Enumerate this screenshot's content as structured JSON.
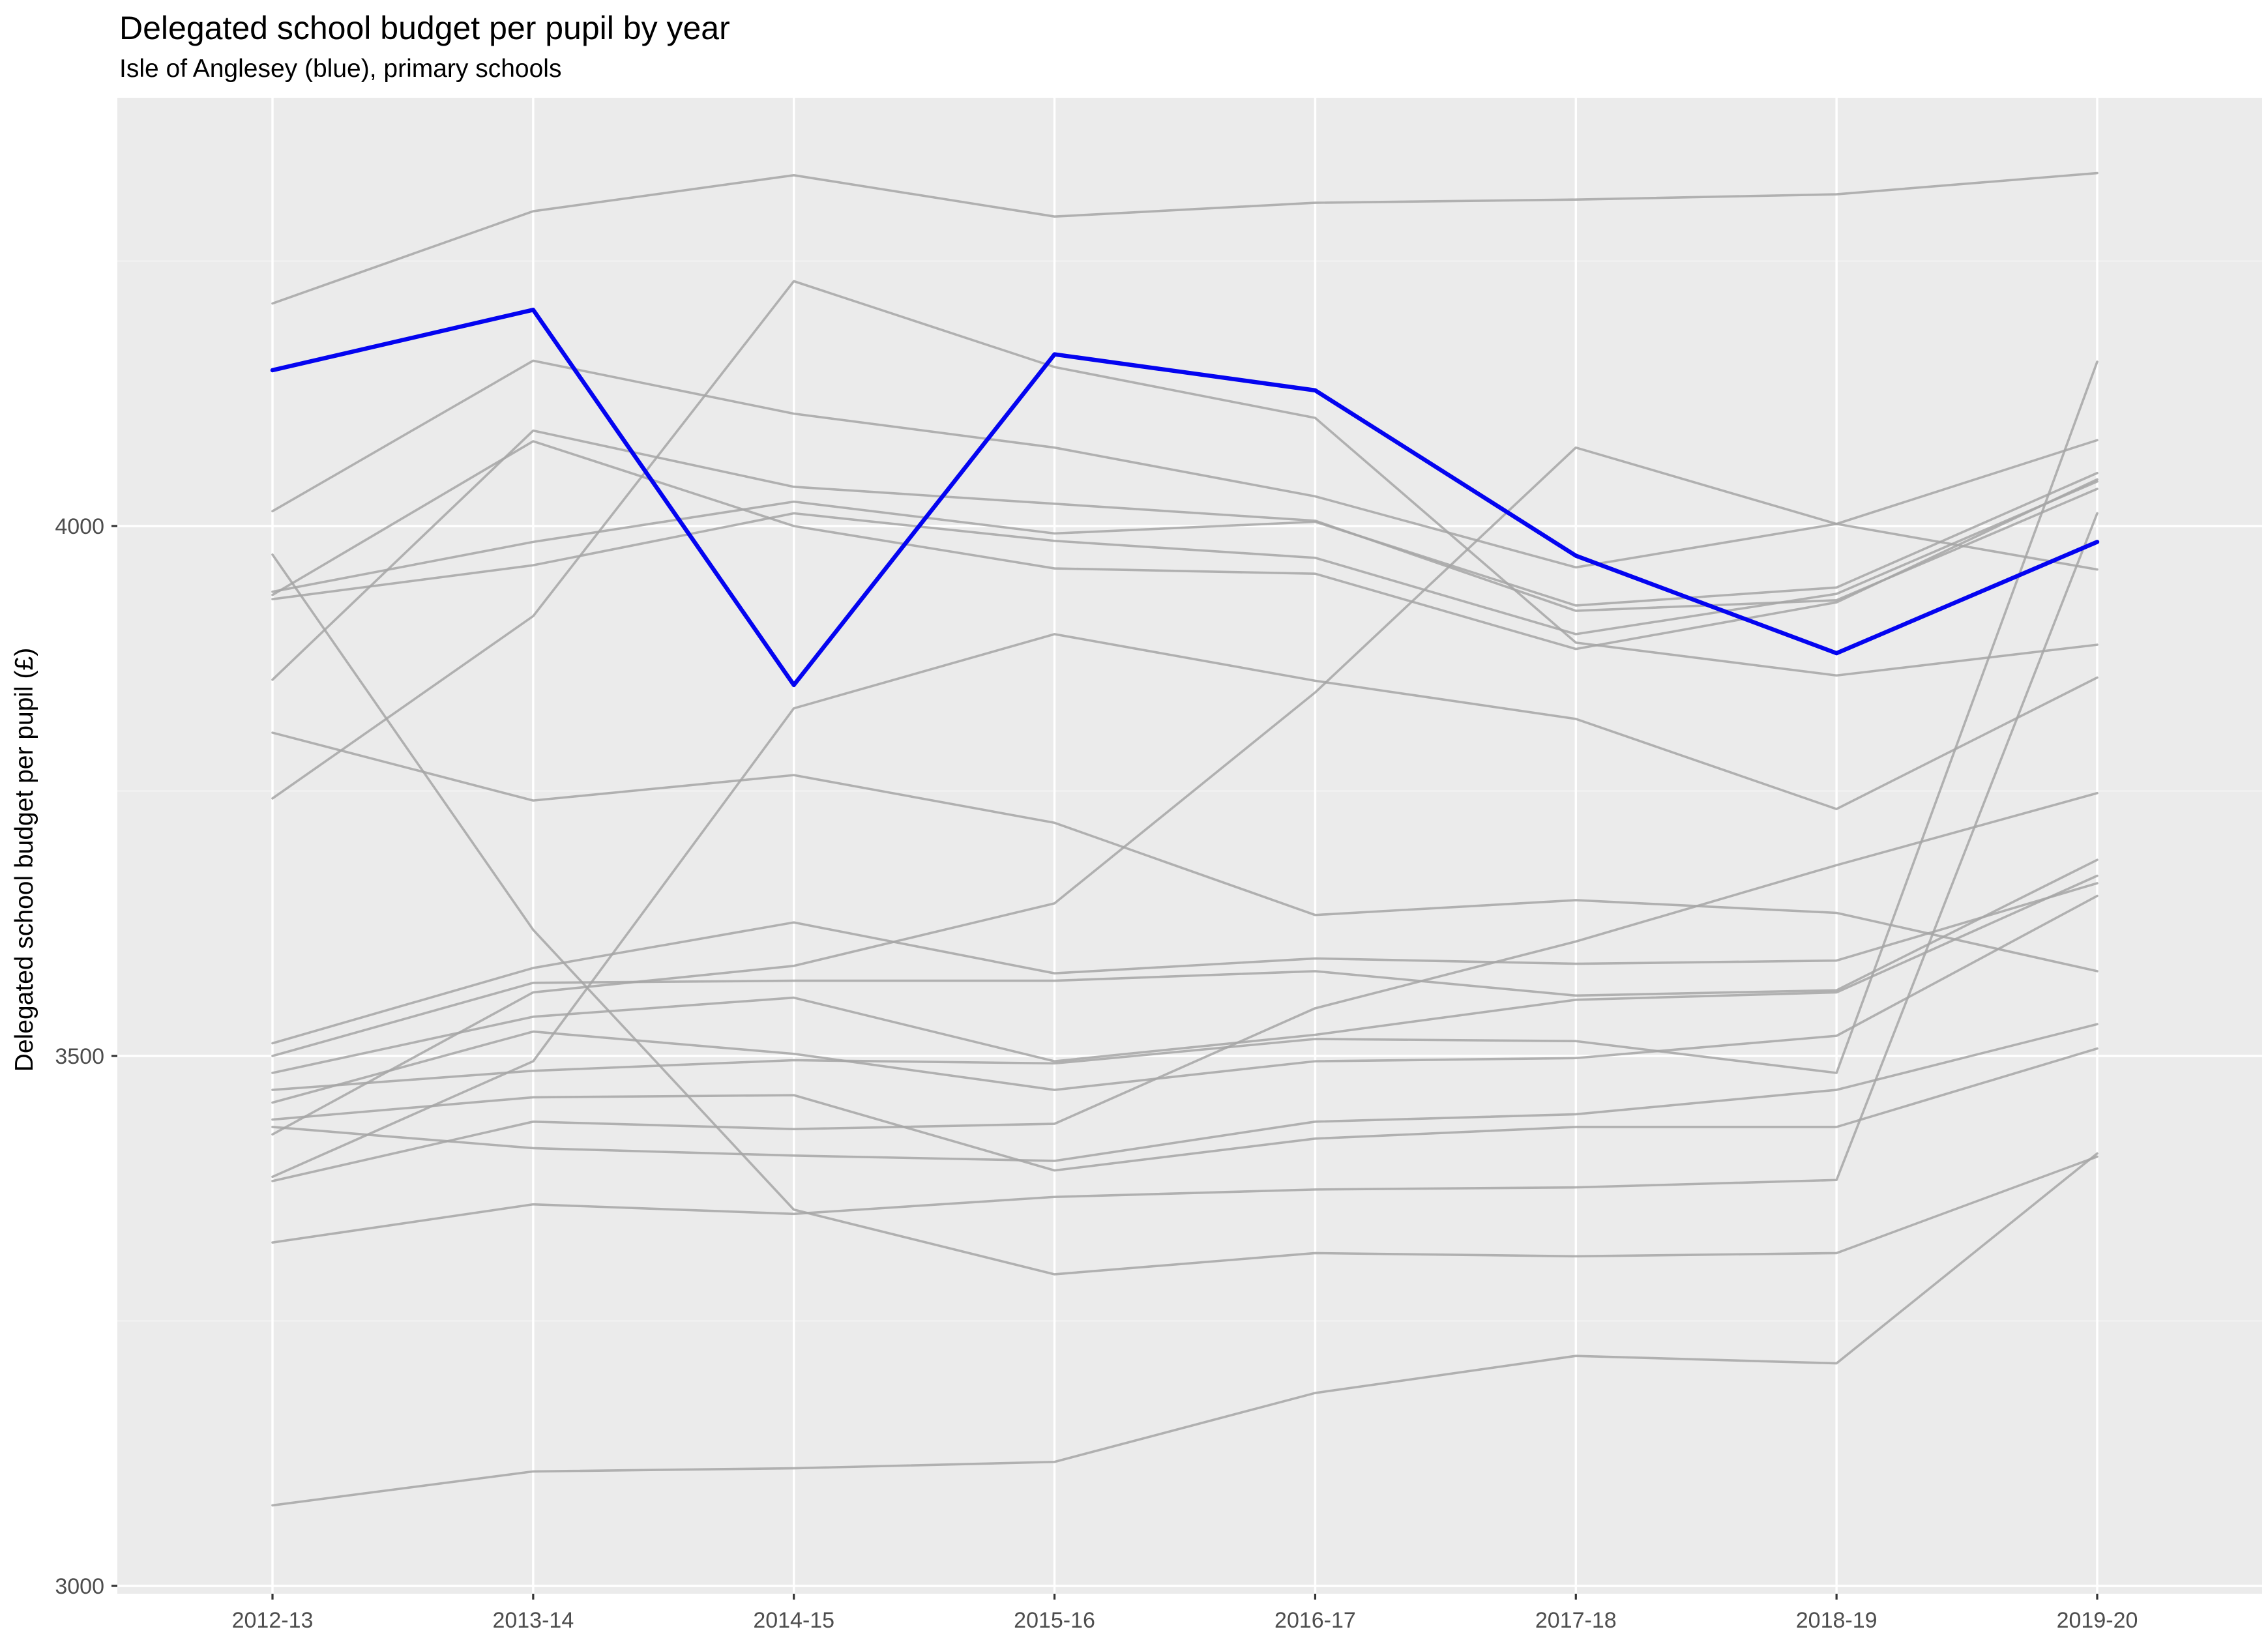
{
  "title": "Delegated school budget per pupil by year",
  "subtitle": "Isle of Anglesey (blue), primary schools",
  "chart_data": {
    "type": "line",
    "title": "Delegated school budget per pupil by year",
    "subtitle": "Isle of Anglesey (blue), primary schools",
    "xlabel": "",
    "ylabel": "Delegated school budget per pupil (£)",
    "x_categories": [
      "2012-13",
      "2013-14",
      "2014-15",
      "2015-16",
      "2016-17",
      "2017-18",
      "2018-19",
      "2019-20"
    ],
    "y_ticks": [
      3000,
      3500,
      4000
    ],
    "y_minor_ticks": [
      3250,
      3750,
      4250
    ],
    "ylim": [
      2993,
      4404
    ],
    "grid": "ggplot-major-minor-white-on-gray",
    "legend_position": "none",
    "highlight_series": "Isle of Anglesey",
    "series": [
      {
        "name": "Isle of Anglesey",
        "role": "highlight",
        "color": "#0404f0",
        "values": [
          4147,
          4204,
          3850,
          4162,
          4128,
          3972,
          3880,
          3985
        ]
      },
      {
        "name": "gray-line-01",
        "role": "other",
        "color": "#a6a6a6",
        "values": [
          4210,
          4297,
          4331,
          4292,
          4305,
          4308,
          4313,
          4333
        ]
      },
      {
        "name": "gray-line-02",
        "role": "other",
        "color": "#a6a6a6",
        "values": [
          3743,
          3915,
          4231,
          4150,
          4102,
          3890,
          3859,
          3888
        ]
      },
      {
        "name": "gray-line-03",
        "role": "other",
        "color": "#a6a6a6",
        "values": [
          4014,
          4156,
          4106,
          4074,
          4028,
          3961,
          4002,
          4081
        ]
      },
      {
        "name": "gray-line-04",
        "role": "other",
        "color": "#a6a6a6",
        "values": [
          3973,
          3619,
          3355,
          3294,
          3314,
          3311,
          3314,
          3405
        ]
      },
      {
        "name": "gray-line-05",
        "role": "other",
        "color": "#a6a6a6",
        "values": [
          3076,
          3108,
          3111,
          3117,
          3182,
          3217,
          3210,
          3408
        ]
      },
      {
        "name": "gray-line-06",
        "role": "other",
        "color": "#a6a6a6",
        "values": [
          3324,
          3360,
          3351,
          3367,
          3374,
          3376,
          3383,
          4012
        ]
      },
      {
        "name": "gray-line-07",
        "role": "other",
        "color": "#a6a6a6",
        "values": [
          3468,
          3486,
          3496,
          3493,
          3516,
          3514,
          3484,
          4155
        ]
      },
      {
        "name": "gray-line-08",
        "role": "other",
        "color": "#a6a6a6",
        "values": [
          3426,
          3560,
          3585,
          3644,
          3843,
          4074,
          4002,
          3959
        ]
      },
      {
        "name": "gray-line-09",
        "role": "other",
        "color": "#a6a6a6",
        "values": [
          3512,
          3583,
          3626,
          3578,
          3592,
          3587,
          3590,
          3663
        ]
      },
      {
        "name": "gray-line-10",
        "role": "other",
        "color": "#a6a6a6",
        "values": [
          3500,
          3569,
          3571,
          3571,
          3580,
          3557,
          3562,
          3685
        ]
      },
      {
        "name": "gray-line-11",
        "role": "other",
        "color": "#a6a6a6",
        "values": [
          3484,
          3537,
          3555,
          3495,
          3520,
          3553,
          3560,
          3670
        ]
      },
      {
        "name": "gray-line-12",
        "role": "other",
        "color": "#a6a6a6",
        "values": [
          3456,
          3523,
          3502,
          3468,
          3495,
          3498,
          3519,
          3651
        ]
      },
      {
        "name": "gray-line-13",
        "role": "other",
        "color": "#a6a6a6",
        "values": [
          3805,
          3741,
          3765,
          3720,
          3633,
          3647,
          3635,
          3580
        ]
      },
      {
        "name": "gray-line-14",
        "role": "other",
        "color": "#a6a6a6",
        "values": [
          3938,
          3985,
          4023,
          3993,
          4004,
          3925,
          3942,
          4050
        ]
      },
      {
        "name": "gray-line-15",
        "role": "other",
        "color": "#a6a6a6",
        "values": [
          3931,
          3963,
          4012,
          3986,
          3970,
          3898,
          3936,
          4042
        ]
      },
      {
        "name": "gray-line-16",
        "role": "other",
        "color": "#a6a6a6",
        "values": [
          3855,
          4090,
          4037,
          4021,
          4005,
          3920,
          3930,
          4035
        ]
      },
      {
        "name": "gray-line-17",
        "role": "other",
        "color": "#a6a6a6",
        "values": [
          3935,
          4080,
          4000,
          3960,
          3955,
          3884,
          3928,
          4044
        ]
      },
      {
        "name": "gray-line-18",
        "role": "other",
        "color": "#a6a6a6",
        "values": [
          3382,
          3438,
          3431,
          3436,
          3545,
          3608,
          3680,
          3748
        ]
      },
      {
        "name": "gray-line-19",
        "role": "other",
        "color": "#a6a6a6",
        "values": [
          3433,
          3413,
          3406,
          3401,
          3438,
          3445,
          3468,
          3530
        ]
      },
      {
        "name": "gray-line-20",
        "role": "other",
        "color": "#a6a6a6",
        "values": [
          3440,
          3461,
          3463,
          3392,
          3422,
          3433,
          3433,
          3507
        ]
      },
      {
        "name": "gray-line-21",
        "role": "other",
        "color": "#a6a6a6",
        "values": [
          3386,
          3495,
          3828,
          3898,
          3854,
          3818,
          3733,
          3857
        ]
      }
    ]
  },
  "layout_colors": {
    "panel_background": "#EBEBEB",
    "grid_major": "#FFFFFF",
    "grid_minor": "#F5F5F5",
    "tick_label": "#4D4D4D",
    "tick_mark": "#333333",
    "title_text": "#000000"
  }
}
